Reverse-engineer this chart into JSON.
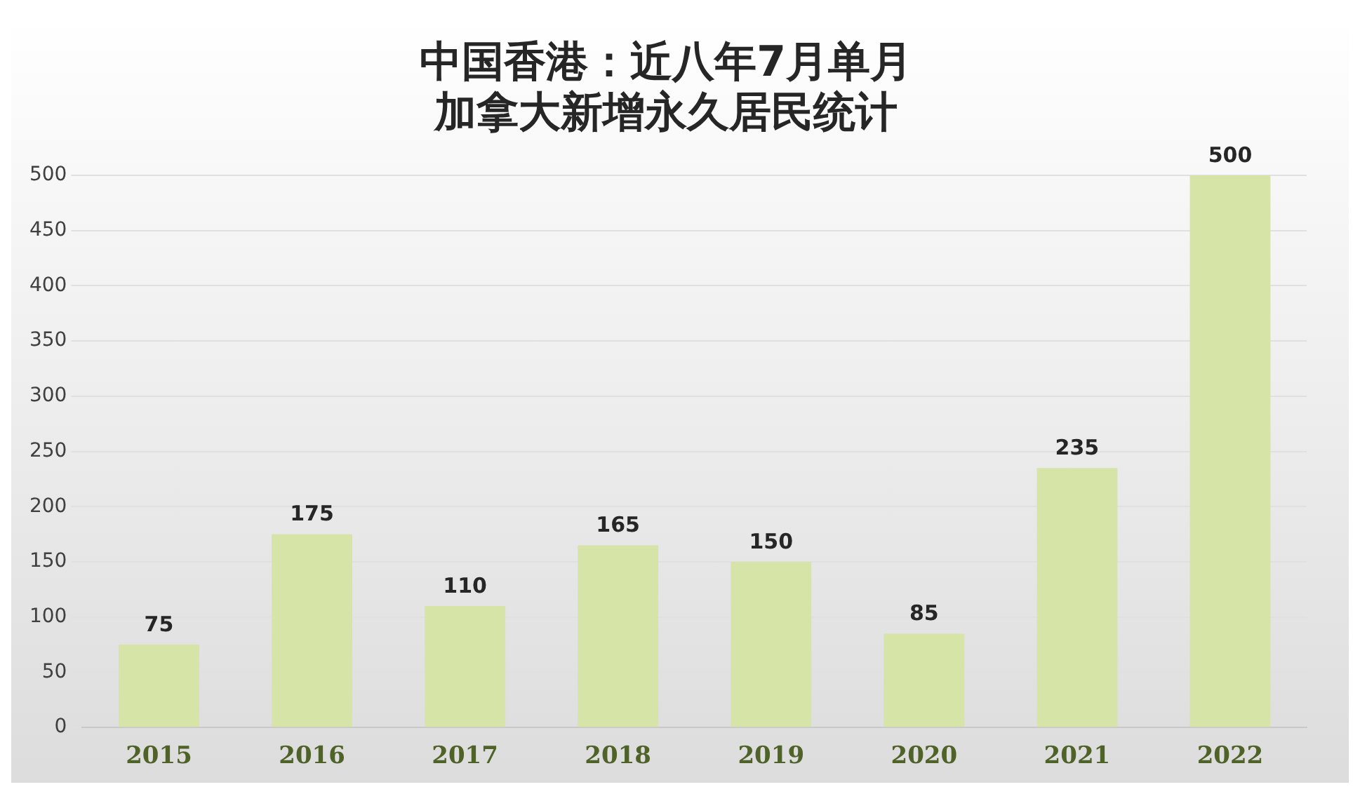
{
  "chart_data": {
    "type": "bar",
    "title": "中国香港：近八年7月单月加拿大新增永久居民统计",
    "categories": [
      "2015",
      "2016",
      "2017",
      "2018",
      "2019",
      "2020",
      "2021",
      "2022"
    ],
    "values": [
      75,
      175,
      110,
      165,
      150,
      85,
      235,
      500
    ],
    "color": "#d7e4a8",
    "ylim": [
      0,
      500
    ],
    "yticks": [
      0,
      50,
      100,
      150,
      200,
      250,
      300,
      350,
      400,
      450,
      500
    ],
    "grid": "y",
    "data_labels": true,
    "legend": false
  }
}
